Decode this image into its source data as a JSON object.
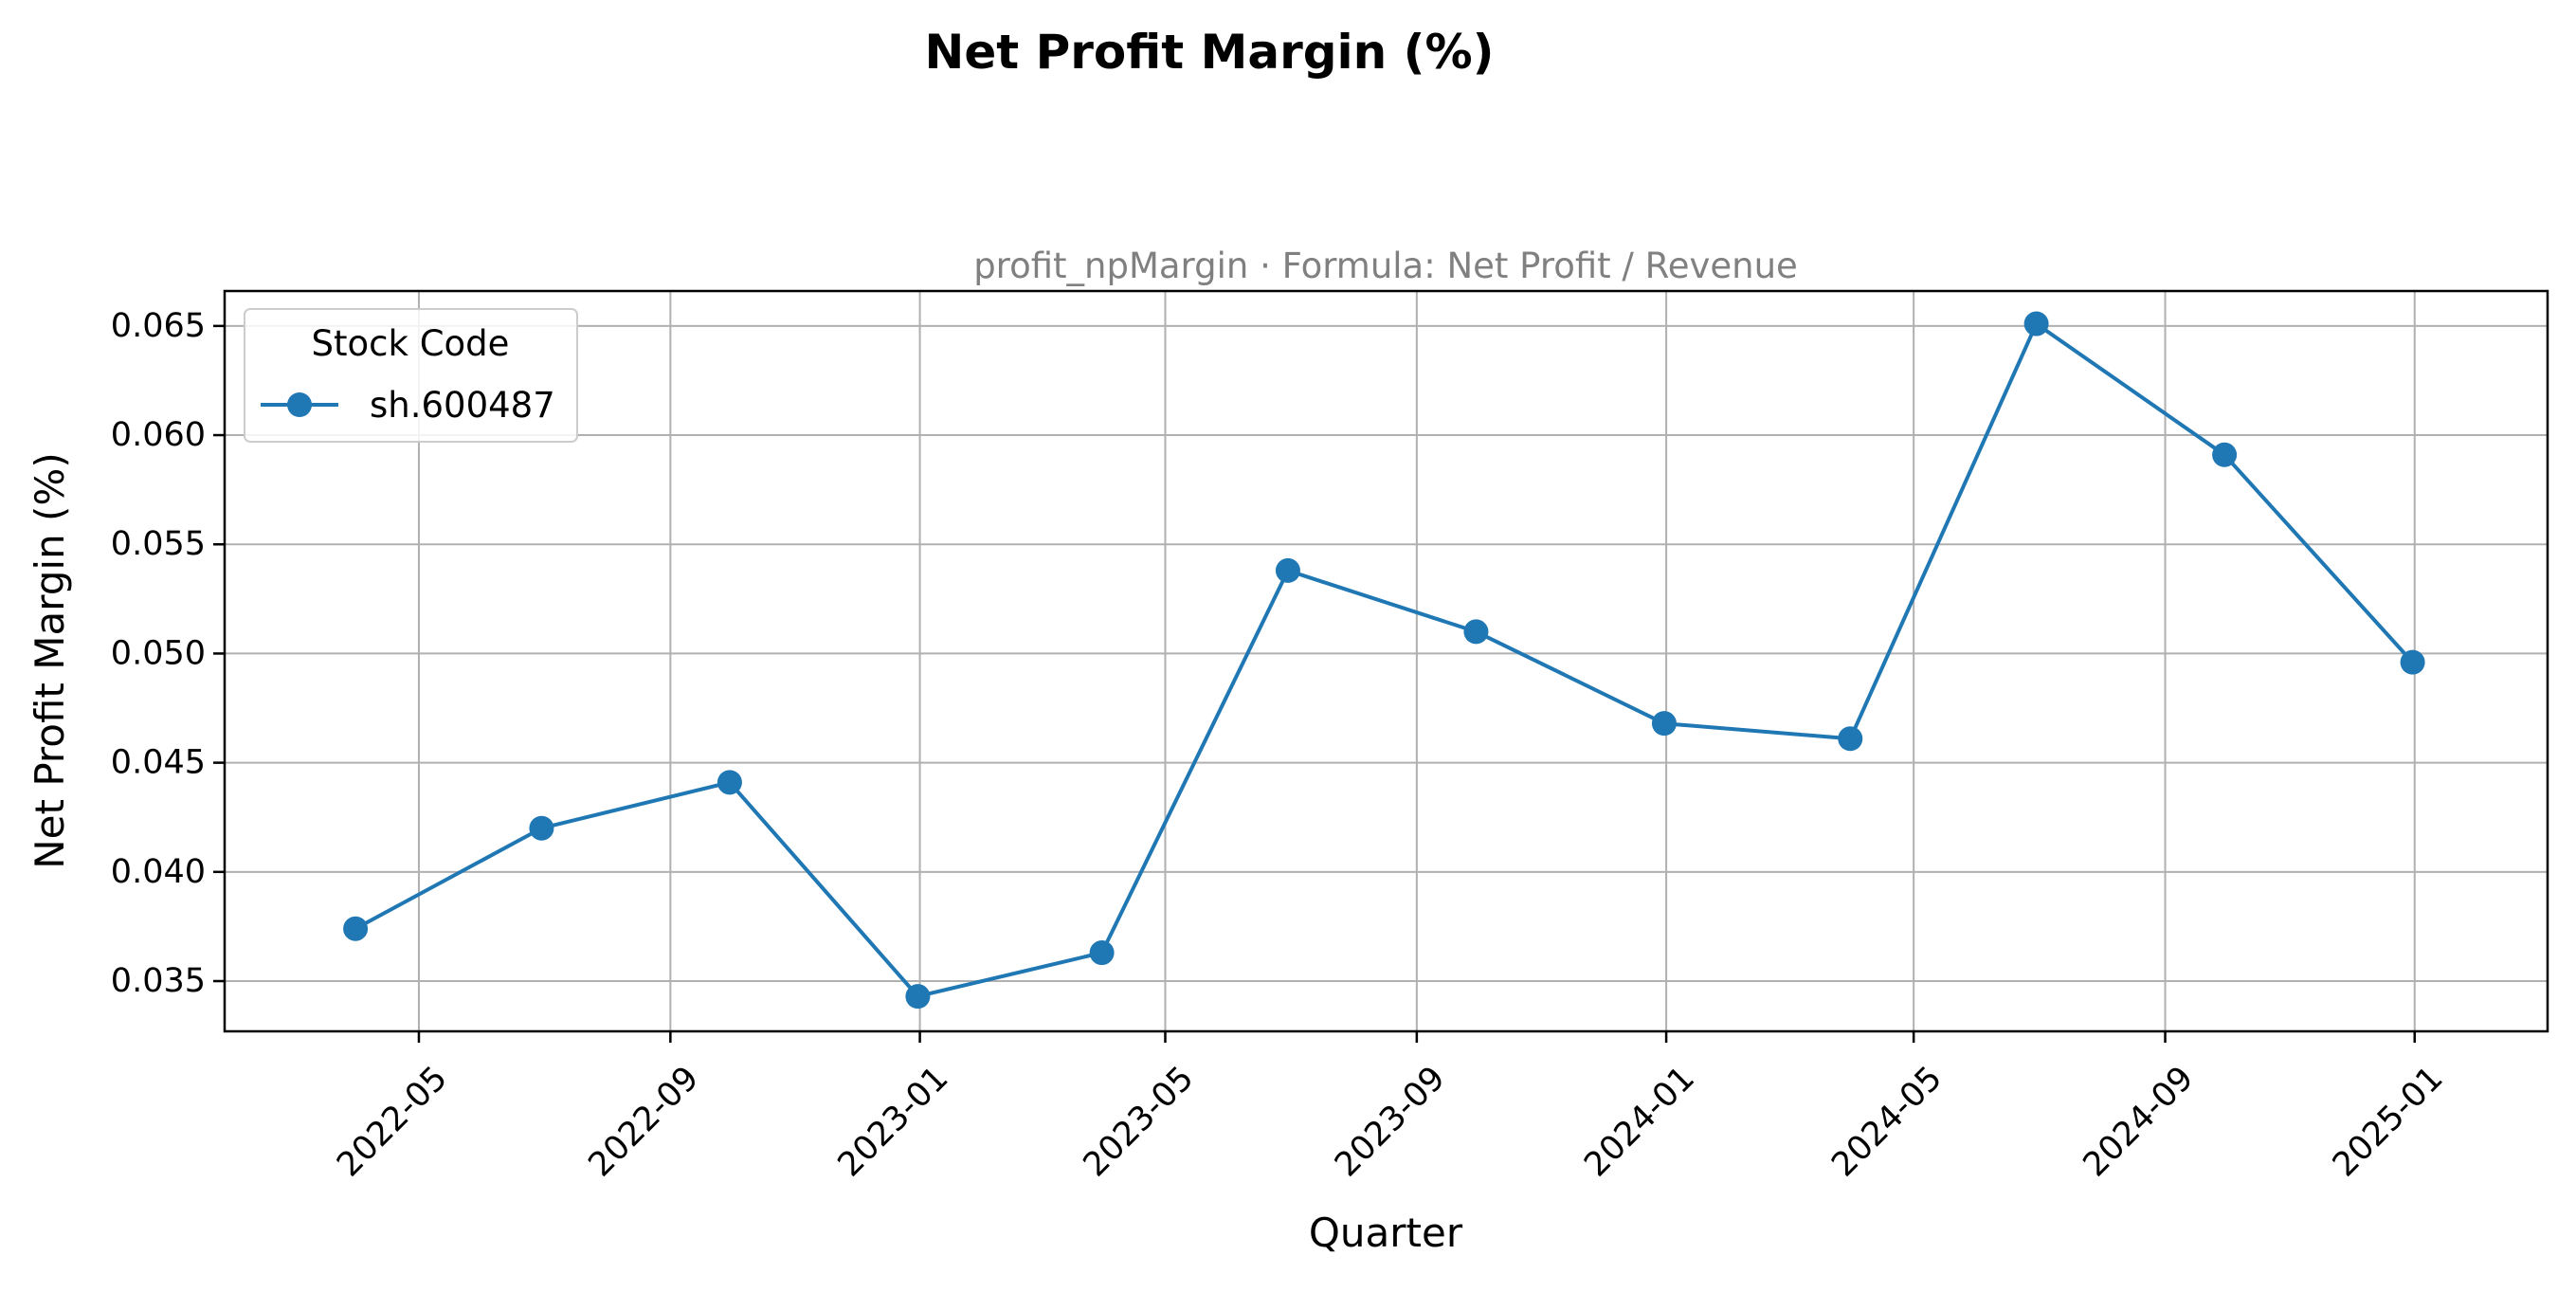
{
  "chart_data": {
    "type": "line",
    "title": "Net Profit Margin (%)",
    "subtitle": "profit_npMargin · Formula: Net Profit / Revenue",
    "xlabel": "Quarter",
    "ylabel": "Net Profit Margin (%)",
    "x_axis_type": "date",
    "xlim": [
      "2022-01-26",
      "2025-03-07"
    ],
    "ylim": [
      0.0327,
      0.0666
    ],
    "grid": true,
    "legend": {
      "title": "Stock Code",
      "placement": "top-left"
    },
    "x_ticks": [
      "2022-05",
      "2022-09",
      "2023-01",
      "2023-05",
      "2023-09",
      "2024-01",
      "2024-05",
      "2024-09",
      "2025-01"
    ],
    "y_ticks": [
      "0.035",
      "0.040",
      "0.045",
      "0.050",
      "0.055",
      "0.060",
      "0.065"
    ],
    "series": [
      {
        "name": "sh.600487",
        "color": "#1f77b4",
        "marker": "circle",
        "x": [
          "2022-03-31",
          "2022-06-30",
          "2022-09-30",
          "2022-12-31",
          "2023-03-31",
          "2023-06-30",
          "2023-09-30",
          "2023-12-31",
          "2024-03-31",
          "2024-06-30",
          "2024-09-30",
          "2024-12-31"
        ],
        "y": [
          0.0374,
          0.042,
          0.0441,
          0.0343,
          0.0363,
          0.0538,
          0.051,
          0.0468,
          0.0461,
          0.0651,
          0.0591,
          0.0496
        ]
      }
    ]
  }
}
